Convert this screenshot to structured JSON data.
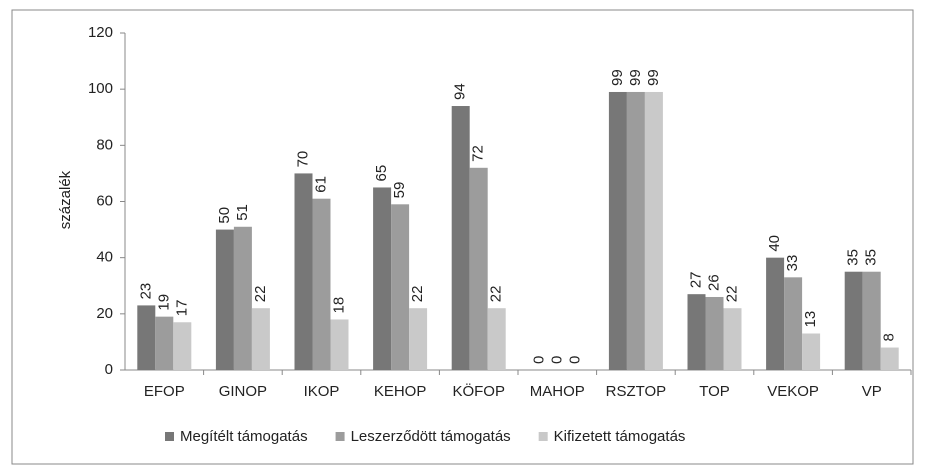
{
  "chart_data": {
    "type": "bar",
    "y_axis_label": "százalék",
    "categories": [
      "EFOP",
      "GINOP",
      "IKOP",
      "KEHOP",
      "KÖFOP",
      "MAHOP",
      "RSZTOP",
      "TOP",
      "VEKOP",
      "VP"
    ],
    "series": [
      {
        "name": "Megítélt támogatás",
        "color": "#777777",
        "values": [
          23,
          50,
          70,
          65,
          94,
          0,
          99,
          27,
          40,
          35
        ]
      },
      {
        "name": "Leszerződött támogatás",
        "color": "#9c9c9c",
        "values": [
          19,
          51,
          61,
          59,
          72,
          0,
          99,
          26,
          33,
          35
        ]
      },
      {
        "name": "Kifizetett támogatás",
        "color": "#c9c9c9",
        "values": [
          17,
          22,
          18,
          22,
          22,
          0,
          99,
          22,
          13,
          8
        ]
      }
    ],
    "ylim": [
      0,
      120
    ],
    "yticks": [
      0,
      20,
      40,
      60,
      80,
      100,
      120
    ],
    "grid": false,
    "legend": "bottom"
  }
}
